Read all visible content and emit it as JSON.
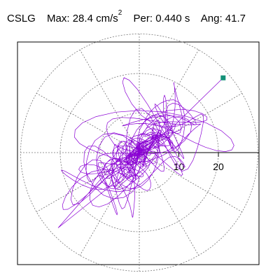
{
  "header": {
    "station": "CSLG",
    "max_label": "Max:",
    "max_value": "28.4",
    "max_unit": "cm/s",
    "max_exp": "2",
    "per_label": "Per:",
    "per_value": "0.440 s",
    "ang_label": "Ang:",
    "ang_value": "41.7"
  },
  "chart_data": {
    "type": "line",
    "subtype": "polar-hodogram (orbit trace)",
    "radial_ticks": [
      10,
      20
    ],
    "radial_tick_labels": [
      "10",
      "20"
    ],
    "ring_radii": [
      10,
      20,
      30
    ],
    "spoke_angles_deg": [
      0,
      30,
      60,
      90,
      120,
      150,
      180,
      210,
      240,
      270,
      300,
      330
    ],
    "grid": true,
    "axis_direction": "east",
    "max_amplitude": 28.4,
    "peak_angle_deg": 41.7,
    "peak_marker_point": [
      21.2,
      18.9
    ],
    "colors": {
      "trace": "#8a00d4",
      "marker": "#149178",
      "grid": "#777777",
      "axis": "#000000"
    }
  }
}
